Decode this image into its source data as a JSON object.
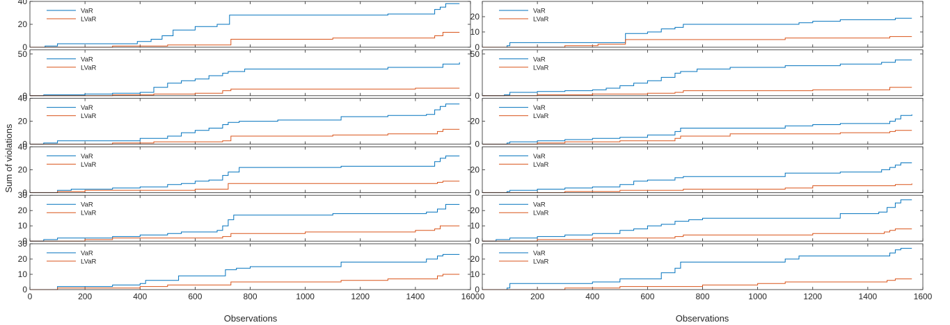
{
  "figure": {
    "ylabel": "Sum of violations",
    "xlabel_left": "Observations",
    "xlabel_right": "Observations",
    "colors": {
      "VaR": "#0072BD",
      "LVaR": "#D95319"
    }
  },
  "chart_data": [
    {
      "type": "line",
      "row": 0,
      "col": 0,
      "xlim": [
        0,
        1600
      ],
      "ylim": [
        0,
        40
      ],
      "yticks": [
        0,
        20,
        40
      ],
      "series": [
        {
          "name": "VaR",
          "x": [
            0,
            55,
            100,
            200,
            300,
            390,
            440,
            480,
            520,
            600,
            680,
            725,
            780,
            900,
            1100,
            1300,
            1440,
            1470,
            1490,
            1510,
            1560
          ],
          "y": [
            0,
            1,
            3,
            3,
            3,
            5,
            7,
            10,
            15,
            18,
            20,
            28,
            28,
            28,
            28,
            29,
            29,
            33,
            35,
            38,
            38
          ]
        },
        {
          "name": "LVaR",
          "x": [
            0,
            300,
            500,
            700,
            730,
            1100,
            1400,
            1470,
            1500,
            1560
          ],
          "y": [
            0,
            1,
            2,
            2,
            7,
            8,
            8,
            10,
            13,
            13
          ]
        }
      ]
    },
    {
      "type": "line",
      "row": 0,
      "col": 1,
      "xlim": [
        0,
        1600
      ],
      "ylim": [
        0,
        30
      ],
      "yticks": [
        0,
        10,
        20
      ],
      "series": [
        {
          "name": "VaR",
          "x": [
            0,
            90,
            100,
            200,
            300,
            400,
            520,
            600,
            650,
            700,
            730,
            900,
            1100,
            1150,
            1200,
            1300,
            1500,
            1560
          ],
          "y": [
            0,
            1,
            3,
            3,
            3,
            3,
            9,
            10,
            12,
            13,
            15,
            15,
            15,
            16,
            17,
            18,
            19,
            19
          ]
        },
        {
          "name": "LVaR",
          "x": [
            0,
            100,
            300,
            420,
            520,
            800,
            1100,
            1300,
            1480,
            1560
          ],
          "y": [
            0,
            0,
            1,
            2,
            5,
            5,
            6,
            6,
            7,
            7
          ]
        }
      ]
    },
    {
      "type": "line",
      "row": 1,
      "col": 0,
      "xlim": [
        0,
        1600
      ],
      "ylim": [
        0,
        55
      ],
      "yticks": [
        0,
        50
      ],
      "series": [
        {
          "name": "VaR",
          "x": [
            0,
            50,
            100,
            200,
            300,
            400,
            450,
            500,
            550,
            600,
            650,
            700,
            720,
            780,
            1100,
            1300,
            1450,
            1500,
            1560
          ],
          "y": [
            0,
            1,
            1,
            2,
            3,
            4,
            10,
            15,
            18,
            20,
            24,
            27,
            29,
            32,
            32,
            34,
            34,
            38,
            40
          ]
        },
        {
          "name": "LVaR",
          "x": [
            0,
            300,
            450,
            600,
            700,
            730,
            1200,
            1400,
            1560
          ],
          "y": [
            0,
            1,
            2,
            3,
            6,
            8,
            8,
            9,
            9
          ]
        }
      ]
    },
    {
      "type": "line",
      "row": 1,
      "col": 1,
      "xlim": [
        0,
        1600
      ],
      "ylim": [
        0,
        55
      ],
      "yticks": [
        0,
        50
      ],
      "series": [
        {
          "name": "VaR",
          "x": [
            0,
            80,
            100,
            200,
            300,
            400,
            450,
            500,
            550,
            600,
            650,
            700,
            720,
            780,
            900,
            1100,
            1300,
            1450,
            1500,
            1560
          ],
          "y": [
            0,
            1,
            4,
            5,
            6,
            7,
            9,
            12,
            15,
            18,
            22,
            27,
            29,
            32,
            34,
            36,
            38,
            40,
            43,
            43
          ]
        },
        {
          "name": "LVaR",
          "x": [
            0,
            200,
            400,
            600,
            700,
            730,
            1000,
            1200,
            1400,
            1480,
            1560
          ],
          "y": [
            0,
            1,
            2,
            3,
            4,
            6,
            6,
            7,
            7,
            10,
            10
          ]
        }
      ]
    },
    {
      "type": "line",
      "row": 2,
      "col": 0,
      "xlim": [
        0,
        1600
      ],
      "ylim": [
        0,
        40
      ],
      "yticks": [
        0,
        20,
        40
      ],
      "series": [
        {
          "name": "VaR",
          "x": [
            0,
            50,
            100,
            200,
            300,
            400,
            500,
            550,
            600,
            650,
            700,
            720,
            760,
            900,
            1100,
            1130,
            1300,
            1440,
            1470,
            1490,
            1510,
            1560
          ],
          "y": [
            0,
            1,
            3,
            3,
            3,
            5,
            7,
            10,
            12,
            14,
            17,
            19,
            20,
            21,
            21,
            24,
            25,
            26,
            30,
            33,
            35,
            35
          ]
        },
        {
          "name": "LVaR",
          "x": [
            0,
            300,
            450,
            600,
            700,
            730,
            1000,
            1100,
            1300,
            1450,
            1480,
            1500,
            1560
          ],
          "y": [
            0,
            1,
            2,
            2,
            3,
            7,
            7,
            8,
            9,
            9,
            11,
            13,
            13
          ]
        }
      ]
    },
    {
      "type": "line",
      "row": 2,
      "col": 1,
      "xlim": [
        0,
        1600
      ],
      "ylim": [
        0,
        40
      ],
      "yticks": [
        0,
        20
      ],
      "series": [
        {
          "name": "VaR",
          "x": [
            0,
            90,
            100,
            200,
            300,
            400,
            500,
            600,
            700,
            720,
            800,
            1000,
            1100,
            1200,
            1300,
            1450,
            1480,
            1500,
            1520,
            1560
          ],
          "y": [
            0,
            1,
            2,
            3,
            4,
            5,
            6,
            8,
            11,
            14,
            14,
            14,
            16,
            17,
            18,
            18,
            20,
            22,
            25,
            26
          ]
        },
        {
          "name": "LVaR",
          "x": [
            0,
            100,
            200,
            300,
            400,
            500,
            600,
            700,
            720,
            900,
            1100,
            1300,
            1450,
            1480,
            1500,
            1560
          ],
          "y": [
            0,
            0,
            1,
            2,
            2,
            3,
            3,
            5,
            7,
            9,
            9,
            10,
            10,
            11,
            12,
            12
          ]
        }
      ]
    },
    {
      "type": "line",
      "row": 3,
      "col": 0,
      "xlim": [
        0,
        1600
      ],
      "ylim": [
        0,
        40
      ],
      "yticks": [
        0,
        20,
        40
      ],
      "series": [
        {
          "name": "VaR",
          "x": [
            0,
            100,
            150,
            200,
            300,
            400,
            500,
            550,
            600,
            650,
            700,
            720,
            760,
            900,
            1130,
            1300,
            1440,
            1470,
            1490,
            1510,
            1560
          ],
          "y": [
            0,
            2,
            3,
            3,
            4,
            5,
            7,
            8,
            10,
            11,
            15,
            18,
            22,
            22,
            23,
            23,
            23,
            27,
            30,
            32,
            32
          ]
        },
        {
          "name": "LVaR",
          "x": [
            0,
            100,
            200,
            300,
            400,
            600,
            700,
            720,
            1000,
            1300,
            1450,
            1480,
            1500,
            1560
          ],
          "y": [
            0,
            1,
            2,
            2,
            2,
            3,
            3,
            8,
            8,
            8,
            8,
            9,
            10,
            10
          ]
        }
      ]
    },
    {
      "type": "line",
      "row": 3,
      "col": 1,
      "xlim": [
        0,
        1600
      ],
      "ylim": [
        0,
        40
      ],
      "yticks": [
        0,
        20
      ],
      "series": [
        {
          "name": "VaR",
          "x": [
            0,
            90,
            100,
            200,
            300,
            400,
            500,
            550,
            600,
            700,
            730,
            900,
            1050,
            1100,
            1300,
            1450,
            1480,
            1500,
            1520,
            1560
          ],
          "y": [
            0,
            1,
            2,
            3,
            4,
            5,
            7,
            10,
            11,
            13,
            14,
            14,
            14,
            17,
            18,
            20,
            22,
            24,
            26,
            26
          ]
        },
        {
          "name": "LVaR",
          "x": [
            0,
            300,
            500,
            700,
            730,
            1100,
            1200,
            1400,
            1500,
            1560
          ],
          "y": [
            0,
            1,
            2,
            2,
            3,
            4,
            6,
            6,
            7,
            8
          ]
        }
      ]
    },
    {
      "type": "line",
      "row": 4,
      "col": 0,
      "xlim": [
        0,
        1600
      ],
      "ylim": [
        0,
        30
      ],
      "yticks": [
        0,
        10,
        20,
        30
      ],
      "series": [
        {
          "name": "VaR",
          "x": [
            0,
            50,
            100,
            200,
            300,
            400,
            500,
            550,
            600,
            680,
            700,
            720,
            740,
            900,
            1100,
            1300,
            1440,
            1480,
            1510,
            1560
          ],
          "y": [
            0,
            1,
            2,
            2,
            3,
            4,
            5,
            6,
            6,
            7,
            10,
            14,
            17,
            17,
            18,
            18,
            19,
            21,
            24,
            24
          ]
        },
        {
          "name": "LVaR",
          "x": [
            0,
            200,
            300,
            500,
            700,
            730,
            1000,
            1200,
            1400,
            1470,
            1490,
            1560
          ],
          "y": [
            0,
            1,
            2,
            2,
            3,
            5,
            6,
            6,
            7,
            8,
            10,
            10
          ]
        }
      ]
    },
    {
      "type": "line",
      "row": 4,
      "col": 1,
      "xlim": [
        0,
        1600
      ],
      "ylim": [
        0,
        30
      ],
      "yticks": [
        0,
        10,
        20
      ],
      "series": [
        {
          "name": "VaR",
          "x": [
            0,
            50,
            100,
            200,
            300,
            400,
            500,
            550,
            600,
            650,
            700,
            750,
            800,
            1000,
            1100,
            1300,
            1440,
            1470,
            1500,
            1520,
            1560
          ],
          "y": [
            0,
            1,
            2,
            3,
            4,
            5,
            7,
            8,
            10,
            11,
            13,
            14,
            15,
            15,
            15,
            18,
            19,
            22,
            25,
            27,
            27
          ]
        },
        {
          "name": "LVaR",
          "x": [
            0,
            200,
            300,
            400,
            500,
            700,
            730,
            1000,
            1200,
            1400,
            1460,
            1480,
            1500,
            1560
          ],
          "y": [
            0,
            1,
            1,
            2,
            2,
            3,
            4,
            4,
            5,
            5,
            6,
            7,
            8,
            8
          ]
        }
      ]
    },
    {
      "type": "line",
      "row": 5,
      "col": 0,
      "xlim": [
        0,
        1600
      ],
      "ylim": [
        0,
        30
      ],
      "yticks": [
        0,
        10,
        20,
        30
      ],
      "series": [
        {
          "name": "VaR",
          "x": [
            0,
            100,
            200,
            300,
            400,
            420,
            500,
            540,
            600,
            700,
            710,
            750,
            800,
            1100,
            1130,
            1300,
            1440,
            1480,
            1500,
            1560
          ],
          "y": [
            0,
            2,
            2,
            3,
            4,
            6,
            6,
            9,
            9,
            9,
            13,
            14,
            15,
            15,
            18,
            18,
            20,
            22,
            23,
            23
          ]
        },
        {
          "name": "LVaR",
          "x": [
            0,
            100,
            200,
            300,
            400,
            500,
            600,
            700,
            730,
            1000,
            1130,
            1300,
            1450,
            1480,
            1500,
            1560
          ],
          "y": [
            0,
            1,
            1,
            1,
            2,
            3,
            3,
            3,
            5,
            5,
            6,
            7,
            7,
            9,
            10,
            10
          ]
        }
      ]
    },
    {
      "type": "line",
      "row": 5,
      "col": 1,
      "xlim": [
        0,
        1600
      ],
      "ylim": [
        0,
        30
      ],
      "yticks": [
        0,
        10,
        20
      ],
      "series": [
        {
          "name": "VaR",
          "x": [
            0,
            90,
            100,
            200,
            300,
            400,
            500,
            650,
            700,
            720,
            800,
            1000,
            1100,
            1150,
            1300,
            1450,
            1480,
            1500,
            1520,
            1560
          ],
          "y": [
            0,
            1,
            4,
            4,
            4,
            5,
            7,
            11,
            14,
            18,
            18,
            18,
            20,
            22,
            22,
            22,
            24,
            26,
            27,
            27
          ]
        },
        {
          "name": "LVaR",
          "x": [
            0,
            300,
            500,
            700,
            800,
            1000,
            1100,
            1200,
            1400,
            1470,
            1500,
            1560
          ],
          "y": [
            0,
            1,
            2,
            2,
            3,
            4,
            5,
            5,
            5,
            6,
            7,
            7
          ]
        }
      ]
    }
  ],
  "figure_rows": 6,
  "figure_cols": 2
}
